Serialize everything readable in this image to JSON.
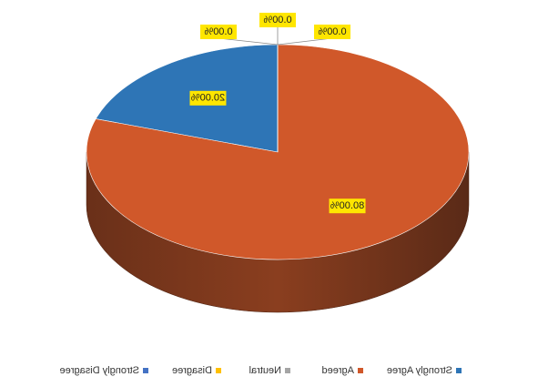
{
  "chart_data": {
    "type": "pie3d",
    "categories": [
      "Strongly Agree",
      "Agreed",
      "Neutral",
      "Disagree",
      "Strongly Disagree"
    ],
    "values": [
      20,
      80,
      0,
      0,
      0
    ],
    "value_labels": [
      "20.00%",
      "80.00%",
      "0.00%",
      "0.00%",
      "0.00%"
    ],
    "colors": [
      "#2e75b6",
      "#d0582a",
      "#a5a5a5",
      "#ffc000",
      "#4472c4"
    ],
    "legend": "bottom"
  }
}
